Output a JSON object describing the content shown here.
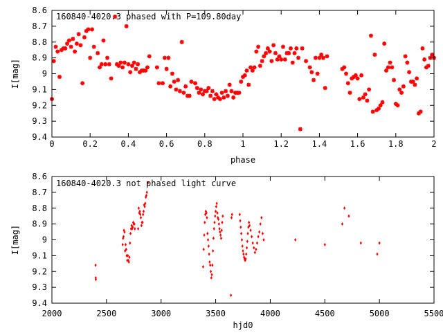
{
  "chart_data": [
    {
      "type": "scatter",
      "title": "160840-4020.3 phased with P=109.80day",
      "xlabel": "phase",
      "ylabel": "I[mag]",
      "xlim": [
        0,
        2
      ],
      "ylim": [
        9.4,
        8.6
      ],
      "y_inverted": true,
      "grid": false,
      "marker_color": "#ff0000",
      "x_ticks": [
        "0",
        "0.2",
        "0.4",
        "0.6",
        "0.8",
        "1",
        "1.2",
        "1.4",
        "1.6",
        "1.8",
        "2"
      ],
      "y_ticks": [
        "8.6",
        "8.7",
        "8.8",
        "8.9",
        "9",
        "9.1",
        "9.2",
        "9.3",
        "9.4"
      ],
      "points": [
        [
          0.0,
          9.16
        ],
        [
          0.01,
          8.92
        ],
        [
          0.02,
          8.83
        ],
        [
          0.03,
          8.86
        ],
        [
          0.04,
          9.02
        ],
        [
          0.05,
          8.85
        ],
        [
          0.06,
          8.84
        ],
        [
          0.07,
          8.84
        ],
        [
          0.08,
          8.81
        ],
        [
          0.09,
          8.79
        ],
        [
          0.1,
          8.83
        ],
        [
          0.11,
          8.78
        ],
        [
          0.12,
          8.86
        ],
        [
          0.13,
          8.81
        ],
        [
          0.14,
          8.75
        ],
        [
          0.15,
          8.82
        ],
        [
          0.16,
          9.06
        ],
        [
          0.17,
          8.77
        ],
        [
          0.18,
          8.73
        ],
        [
          0.19,
          8.72
        ],
        [
          0.2,
          8.9
        ],
        [
          0.21,
          8.72
        ],
        [
          0.22,
          8.83
        ],
        [
          0.24,
          8.87
        ],
        [
          0.25,
          8.96
        ],
        [
          0.26,
          8.94
        ],
        [
          0.27,
          8.79
        ],
        [
          0.28,
          8.94
        ],
        [
          0.29,
          8.9
        ],
        [
          0.3,
          8.94
        ],
        [
          0.31,
          9.03
        ],
        [
          0.33,
          8.64
        ],
        [
          0.34,
          8.94
        ],
        [
          0.35,
          8.95
        ],
        [
          0.36,
          8.93
        ],
        [
          0.37,
          8.96
        ],
        [
          0.38,
          8.93
        ],
        [
          0.39,
          8.7
        ],
        [
          0.4,
          8.94
        ],
        [
          0.41,
          8.99
        ],
        [
          0.42,
          8.95
        ],
        [
          0.43,
          8.93
        ],
        [
          0.44,
          8.97
        ],
        [
          0.45,
          8.94
        ],
        [
          0.46,
          8.99
        ],
        [
          0.47,
          8.98
        ],
        [
          0.48,
          8.98
        ],
        [
          0.49,
          8.98
        ],
        [
          0.5,
          8.96
        ],
        [
          0.51,
          8.89
        ],
        [
          0.55,
          8.96
        ],
        [
          0.56,
          9.06
        ],
        [
          0.58,
          9.06
        ],
        [
          0.59,
          8.9
        ],
        [
          0.6,
          8.97
        ],
        [
          0.61,
          8.9
        ],
        [
          0.62,
          9.08
        ],
        [
          0.63,
          9.0
        ],
        [
          0.64,
          9.05
        ],
        [
          0.65,
          9.1
        ],
        [
          0.66,
          9.04
        ],
        [
          0.67,
          9.11
        ],
        [
          0.68,
          8.8
        ],
        [
          0.69,
          9.12
        ],
        [
          0.7,
          9.08
        ],
        [
          0.71,
          9.14
        ],
        [
          0.72,
          9.14
        ],
        [
          0.73,
          9.05
        ],
        [
          0.75,
          9.06
        ],
        [
          0.76,
          9.09
        ],
        [
          0.77,
          9.12
        ],
        [
          0.78,
          9.1
        ],
        [
          0.79,
          9.13
        ],
        [
          0.8,
          9.11
        ],
        [
          0.81,
          9.11
        ],
        [
          0.82,
          9.09
        ],
        [
          0.83,
          9.14
        ],
        [
          0.84,
          9.11
        ],
        [
          0.85,
          9.16
        ],
        [
          0.86,
          9.13
        ],
        [
          0.87,
          9.15
        ],
        [
          0.88,
          9.16
        ],
        [
          0.89,
          9.12
        ],
        [
          0.9,
          9.15
        ],
        [
          0.91,
          9.11
        ],
        [
          0.92,
          9.14
        ],
        [
          0.93,
          9.07
        ],
        [
          0.94,
          9.11
        ],
        [
          0.95,
          9.15
        ],
        [
          0.96,
          9.12
        ],
        [
          0.97,
          9.12
        ],
        [
          0.98,
          9.12
        ],
        [
          0.99,
          9.05
        ],
        [
          1.0,
          9.02
        ],
        [
          1.01,
          9.01
        ],
        [
          1.02,
          8.98
        ],
        [
          1.03,
          9.07
        ],
        [
          1.04,
          8.96
        ],
        [
          1.05,
          8.98
        ],
        [
          1.06,
          8.96
        ],
        [
          1.07,
          8.86
        ],
        [
          1.08,
          8.83
        ],
        [
          1.09,
          8.95
        ],
        [
          1.1,
          8.92
        ],
        [
          1.11,
          8.89
        ],
        [
          1.12,
          8.87
        ],
        [
          1.13,
          8.84
        ],
        [
          1.14,
          8.86
        ],
        [
          1.15,
          8.92
        ],
        [
          1.16,
          8.82
        ],
        [
          1.17,
          8.87
        ],
        [
          1.18,
          8.91
        ],
        [
          1.19,
          8.89
        ],
        [
          1.2,
          8.91
        ],
        [
          1.21,
          8.83
        ],
        [
          1.22,
          8.91
        ],
        [
          1.23,
          8.87
        ],
        [
          1.24,
          8.87
        ],
        [
          1.25,
          8.84
        ],
        [
          1.26,
          8.93
        ],
        [
          1.27,
          8.87
        ],
        [
          1.28,
          8.84
        ],
        [
          1.29,
          8.9
        ],
        [
          1.3,
          9.35
        ],
        [
          1.31,
          8.84
        ],
        [
          1.33,
          8.92
        ],
        [
          1.35,
          8.96
        ],
        [
          1.36,
          8.99
        ],
        [
          1.37,
          9.04
        ],
        [
          1.38,
          8.9
        ],
        [
          1.39,
          9.0
        ],
        [
          1.4,
          8.9
        ],
        [
          1.41,
          8.88
        ],
        [
          1.42,
          8.9
        ],
        [
          1.43,
          9.09
        ],
        [
          1.44,
          8.89
        ],
        [
          1.52,
          8.97
        ],
        [
          1.53,
          8.96
        ],
        [
          1.54,
          9.0
        ],
        [
          1.55,
          9.06
        ],
        [
          1.56,
          9.12
        ],
        [
          1.57,
          9.03
        ],
        [
          1.58,
          9.02
        ],
        [
          1.59,
          9.01
        ],
        [
          1.6,
          9.03
        ],
        [
          1.61,
          9.16
        ],
        [
          1.62,
          9.01
        ],
        [
          1.63,
          9.15
        ],
        [
          1.64,
          9.13
        ],
        [
          1.65,
          9.17
        ],
        [
          1.66,
          9.1
        ],
        [
          1.67,
          8.76
        ],
        [
          1.68,
          9.24
        ],
        [
          1.69,
          8.88
        ],
        [
          1.7,
          9.23
        ],
        [
          1.71,
          9.22
        ],
        [
          1.72,
          9.2
        ],
        [
          1.73,
          9.18
        ],
        [
          1.74,
          8.81
        ],
        [
          1.75,
          8.98
        ],
        [
          1.76,
          8.96
        ],
        [
          1.77,
          8.93
        ],
        [
          1.78,
          8.96
        ],
        [
          1.79,
          9.04
        ],
        [
          1.8,
          9.19
        ],
        [
          1.81,
          9.2
        ],
        [
          1.82,
          9.1
        ],
        [
          1.83,
          9.12
        ],
        [
          1.84,
          9.08
        ],
        [
          1.85,
          8.89
        ],
        [
          1.86,
          8.93
        ],
        [
          1.87,
          8.99
        ],
        [
          1.88,
          9.05
        ],
        [
          1.89,
          9.05
        ],
        [
          1.9,
          9.07
        ],
        [
          1.91,
          9.03
        ],
        [
          1.92,
          9.25
        ],
        [
          1.93,
          9.24
        ],
        [
          1.94,
          8.84
        ],
        [
          1.95,
          8.91
        ],
        [
          1.96,
          8.96
        ],
        [
          1.97,
          8.95
        ],
        [
          1.98,
          8.9
        ],
        [
          1.99,
          8.88
        ],
        [
          2.0,
          8.9
        ]
      ]
    },
    {
      "type": "scatter",
      "title": "160840-4020.3 not phased light curve",
      "xlabel": "hjd0",
      "ylabel": "I[mag]",
      "xlim": [
        2000,
        5500
      ],
      "ylim": [
        9.4,
        8.6
      ],
      "y_inverted": true,
      "grid": false,
      "marker_color": "#ff0000",
      "x_ticks": [
        "2000",
        "2500",
        "3000",
        "3500",
        "4000",
        "4500",
        "5000",
        "5500"
      ],
      "y_ticks": [
        "8.6",
        "8.7",
        "8.8",
        "8.9",
        "9",
        "9.1",
        "9.2",
        "9.3",
        "9.4"
      ],
      "points": [
        [
          2400,
          9.16
        ],
        [
          2401,
          9.24
        ],
        [
          2402,
          9.25
        ],
        [
          2648,
          9.03
        ],
        [
          2652,
          8.99
        ],
        [
          2656,
          8.98
        ],
        [
          2660,
          8.94
        ],
        [
          2665,
          8.95
        ],
        [
          2670,
          9.07
        ],
        [
          2675,
          9.03
        ],
        [
          2680,
          9.06
        ],
        [
          2685,
          9.1
        ],
        [
          2690,
          9.13
        ],
        [
          2695,
          9.1
        ],
        [
          2700,
          9.13
        ],
        [
          2705,
          9.14
        ],
        [
          2710,
          9.11
        ],
        [
          2715,
          9.02
        ],
        [
          2720,
          8.96
        ],
        [
          2725,
          8.93
        ],
        [
          2730,
          8.91
        ],
        [
          2735,
          8.93
        ],
        [
          2740,
          8.92
        ],
        [
          2745,
          8.89
        ],
        [
          2750,
          8.9
        ],
        [
          2755,
          8.9
        ],
        [
          2760,
          8.93
        ],
        [
          2790,
          8.93
        ],
        [
          2795,
          8.8
        ],
        [
          2800,
          8.83
        ],
        [
          2805,
          8.82
        ],
        [
          2810,
          8.84
        ],
        [
          2815,
          8.86
        ],
        [
          2820,
          8.91
        ],
        [
          2825,
          8.89
        ],
        [
          2830,
          8.89
        ],
        [
          2835,
          8.84
        ],
        [
          2840,
          8.82
        ],
        [
          2845,
          8.78
        ],
        [
          2850,
          8.79
        ],
        [
          2855,
          8.77
        ],
        [
          2860,
          8.73
        ],
        [
          2865,
          8.72
        ],
        [
          2870,
          8.7
        ],
        [
          2880,
          8.64
        ],
        [
          3385,
          9.17
        ],
        [
          3390,
          9.06
        ],
        [
          3395,
          8.97
        ],
        [
          3400,
          8.89
        ],
        [
          3405,
          8.84
        ],
        [
          3410,
          8.82
        ],
        [
          3415,
          8.83
        ],
        [
          3420,
          8.86
        ],
        [
          3425,
          8.96
        ],
        [
          3430,
          9.0
        ],
        [
          3435,
          9.04
        ],
        [
          3440,
          9.09
        ],
        [
          3445,
          9.14
        ],
        [
          3450,
          9.16
        ],
        [
          3455,
          9.2
        ],
        [
          3460,
          9.24
        ],
        [
          3465,
          9.22
        ],
        [
          3470,
          9.16
        ],
        [
          3475,
          9.07
        ],
        [
          3480,
          8.99
        ],
        [
          3485,
          8.93
        ],
        [
          3490,
          8.89
        ],
        [
          3495,
          8.85
        ],
        [
          3500,
          8.82
        ],
        [
          3505,
          8.79
        ],
        [
          3510,
          8.77
        ],
        [
          3515,
          8.83
        ],
        [
          3520,
          8.86
        ],
        [
          3525,
          8.87
        ],
        [
          3530,
          8.9
        ],
        [
          3535,
          8.93
        ],
        [
          3540,
          8.95
        ],
        [
          3545,
          8.97
        ],
        [
          3550,
          8.99
        ],
        [
          3555,
          8.94
        ],
        [
          3560,
          8.89
        ],
        [
          3565,
          8.85
        ],
        [
          3640,
          9.35
        ],
        [
          3645,
          8.86
        ],
        [
          3650,
          8.84
        ],
        [
          3720,
          8.84
        ],
        [
          3725,
          8.88
        ],
        [
          3730,
          8.92
        ],
        [
          3735,
          8.96
        ],
        [
          3740,
          9.0
        ],
        [
          3745,
          9.04
        ],
        [
          3750,
          9.07
        ],
        [
          3755,
          9.09
        ],
        [
          3760,
          9.11
        ],
        [
          3765,
          9.12
        ],
        [
          3770,
          9.13
        ],
        [
          3775,
          9.12
        ],
        [
          3780,
          9.09
        ],
        [
          3785,
          9.05
        ],
        [
          3790,
          9.01
        ],
        [
          3795,
          8.96
        ],
        [
          3800,
          8.92
        ],
        [
          3805,
          8.89
        ],
        [
          3810,
          8.91
        ],
        [
          3820,
          8.94
        ],
        [
          3830,
          8.98
        ],
        [
          3840,
          9.02
        ],
        [
          3850,
          9.05
        ],
        [
          3860,
          9.08
        ],
        [
          3870,
          9.06
        ],
        [
          3880,
          9.02
        ],
        [
          3890,
          8.98
        ],
        [
          3900,
          8.95
        ],
        [
          3910,
          8.9
        ],
        [
          3920,
          8.86
        ],
        [
          3930,
          8.96
        ],
        [
          3940,
          9.0
        ],
        [
          4230,
          9.0
        ],
        [
          4500,
          9.03
        ],
        [
          4660,
          8.9
        ],
        [
          4680,
          8.8
        ],
        [
          4720,
          8.85
        ],
        [
          4830,
          9.02
        ],
        [
          4980,
          9.09
        ],
        [
          5000,
          9.02
        ]
      ]
    }
  ]
}
